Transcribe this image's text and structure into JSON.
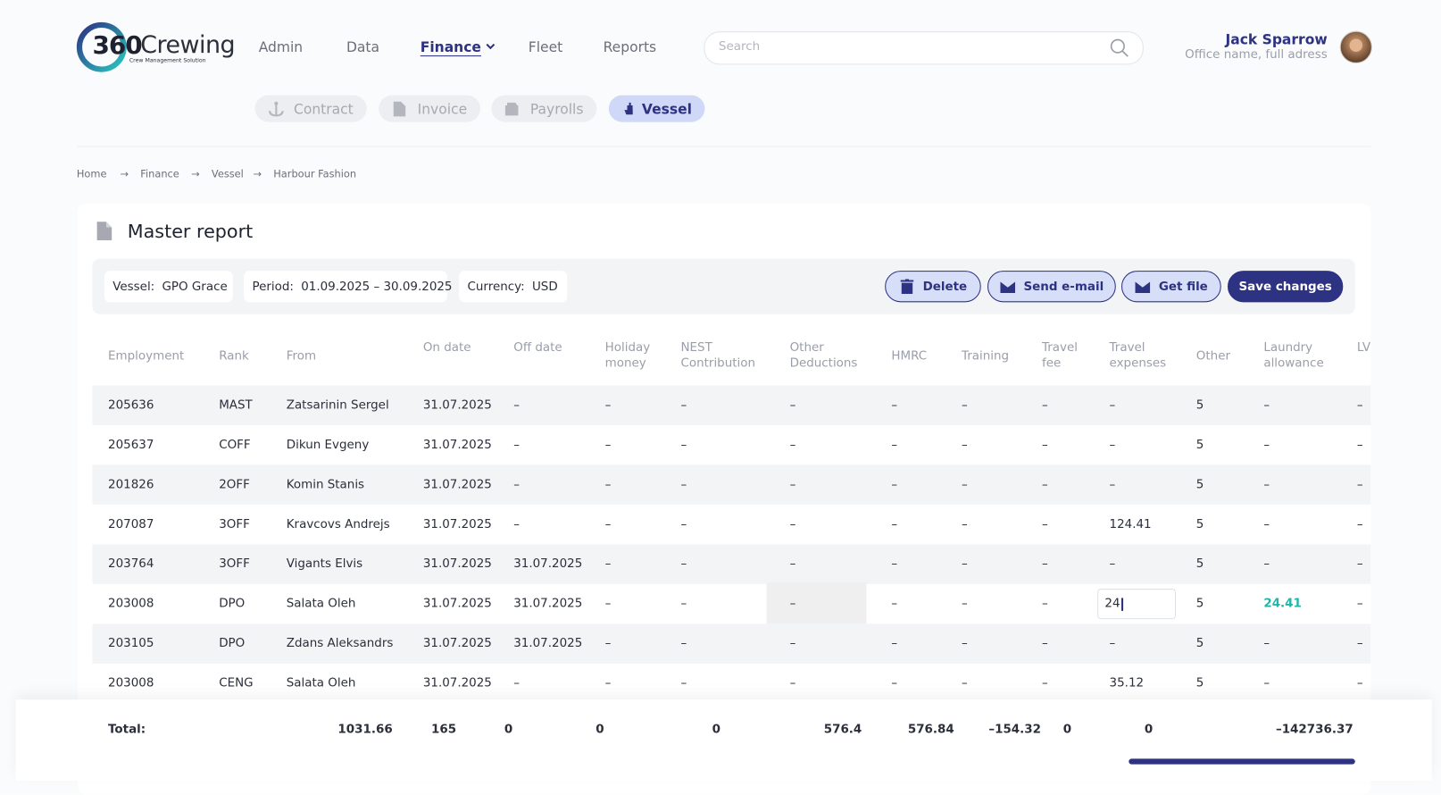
{
  "logo": {
    "number": "360",
    "name": "Crewing",
    "tagline": "Crew Management Solution"
  },
  "nav": {
    "items": [
      "Admin",
      "Data",
      "Finance",
      "Fleet",
      "Reports"
    ],
    "active": 2
  },
  "search": {
    "placeholder": "Search"
  },
  "user": {
    "name": "Jack Sparrow",
    "office": "Office name, full adress"
  },
  "tabs": {
    "items": [
      "Contract",
      "Invoice",
      "Payrolls",
      "Vessel"
    ],
    "active": 3
  },
  "breadcrumb": [
    "Home",
    "Finance",
    "Vessel",
    "Harbour Fashion"
  ],
  "report": {
    "title": "Master report",
    "filters": [
      {
        "label": "Vessel:",
        "value": "GPO Grace"
      },
      {
        "label": "Period:",
        "value": "01.09.2025 – 30.09.2025"
      },
      {
        "label": "Currency:",
        "value": "USD"
      }
    ],
    "actions": [
      "Delete",
      "Send e-mail",
      "Get file",
      "Save changes"
    ]
  },
  "table": {
    "columns": [
      "Employment",
      "Rank",
      "From",
      "On date",
      "Off date",
      "Holiday money",
      "NEST Contribution",
      "Other Deductions",
      "HMRC",
      "Training",
      "Travel fee",
      "Travel expenses",
      "Other",
      "Laundry allowance",
      "LV Inc"
    ],
    "rows": [
      [
        "205636",
        "MAST",
        "Zatsarinin Sergel",
        "31.07.2025",
        "–",
        "–",
        "–",
        "–",
        "–",
        "–",
        "–",
        "–",
        "5",
        "–",
        "–"
      ],
      [
        "205637",
        "COFF",
        "Dikun Evgeny",
        "31.07.2025",
        "–",
        "–",
        "–",
        "–",
        "–",
        "–",
        "–",
        "–",
        "5",
        "–",
        "–"
      ],
      [
        "201826",
        "2OFF",
        "Komin Stanis",
        "31.07.2025",
        "–",
        "–",
        "–",
        "–",
        "–",
        "–",
        "–",
        "–",
        "5",
        "–",
        "–"
      ],
      [
        "207087",
        "3OFF",
        "Kravcovs Andrejs",
        "31.07.2025",
        "–",
        "–",
        "–",
        "–",
        "–",
        "–",
        "–",
        "124.41",
        "5",
        "–",
        "–"
      ],
      [
        "203764",
        "3OFF",
        "Vigants Elvis",
        "31.07.2025",
        "31.07.2025",
        "–",
        "–",
        "–",
        "–",
        "–",
        "–",
        "–",
        "5",
        "–",
        "–"
      ],
      [
        "203008",
        "DPO",
        "Salata Oleh",
        "31.07.2025",
        "31.07.2025",
        "–",
        "–",
        "–",
        "–",
        "–",
        "–",
        "24",
        "5",
        "24.41",
        "–"
      ],
      [
        "203105",
        "DPO",
        "Zdans Aleksandrs",
        "31.07.2025",
        "31.07.2025",
        "–",
        "–",
        "–",
        "–",
        "–",
        "–",
        "–",
        "5",
        "–",
        "–"
      ],
      [
        "203008",
        "CENG",
        "Salata Oleh",
        "31.07.2025",
        "–",
        "–",
        "–",
        "–",
        "–",
        "–",
        "–",
        "35.12",
        "5",
        "–",
        "–"
      ]
    ],
    "total": {
      "label": "Total:",
      "values": [
        "1031.66",
        "165",
        "0",
        "0",
        "0",
        "576.4",
        "576.84",
        "–154.32",
        "0",
        "0",
        "–142736.37"
      ]
    }
  }
}
